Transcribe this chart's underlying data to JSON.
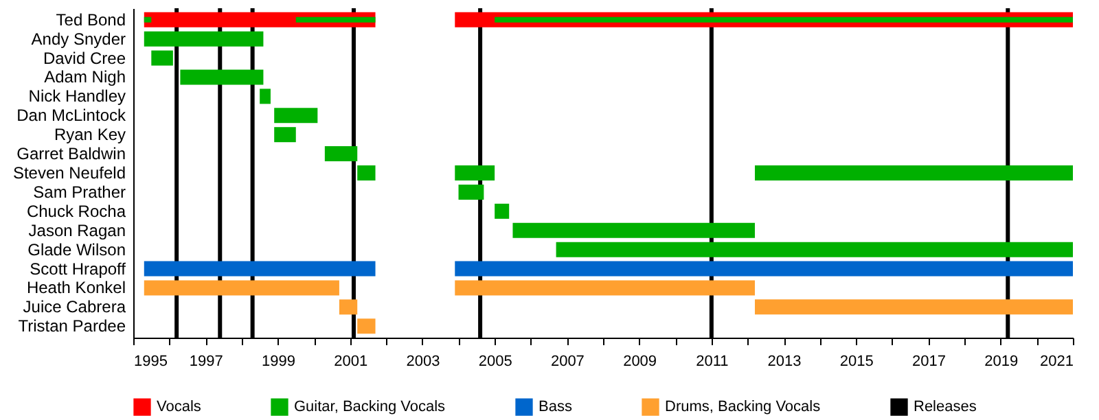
{
  "chart_data": {
    "type": "bar",
    "orientation": "horizontal",
    "categories": [
      "Ted Bond",
      "Andy Snyder",
      "David Cree",
      "Adam Nigh",
      "Nick Handley",
      "Dan McLintock",
      "Ryan Key",
      "Garret Baldwin",
      "Steven Neufeld",
      "Sam Prather",
      "Chuck Rocha",
      "Jason Ragan",
      "Glade Wilson",
      "Scott Hrapoff",
      "Heath Konkel",
      "Juice Cabrera",
      "Tristan Pardee"
    ],
    "series": [
      {
        "name": "Vocals",
        "color": "#ff0000",
        "base": [
          1995.3,
          null,
          null,
          null,
          null,
          null,
          null,
          null,
          null,
          null,
          null,
          null,
          null,
          null,
          null,
          null,
          null
        ],
        "values": [
          6.4,
          null,
          null,
          null,
          null,
          null,
          null,
          null,
          null,
          null,
          null,
          null,
          null,
          null,
          null,
          null,
          null
        ]
      },
      {
        "color": "#ff0000",
        "base": [
          2003.9,
          null,
          null,
          null,
          null,
          null,
          null,
          null,
          null,
          null,
          null,
          null,
          null,
          null,
          null,
          null,
          null
        ],
        "values": [
          17.1,
          null,
          null,
          null,
          null,
          null,
          null,
          null,
          null,
          null,
          null,
          null,
          null,
          null,
          null,
          null,
          null
        ]
      },
      {
        "name": "Guitar, Backing Vocals",
        "color": "#00b000",
        "base": [
          1999.5,
          1995.3,
          1995.5,
          1996.3,
          1998.5,
          1998.9,
          1998.9,
          2000.3,
          2001.2,
          null,
          null,
          null,
          null,
          null,
          null,
          null,
          null
        ],
        "values": [
          2.2,
          3.3,
          0.6,
          2.3,
          0.3,
          1.2,
          0.6,
          0.9,
          0.5,
          null,
          null,
          null,
          null,
          null,
          null,
          null,
          null
        ]
      },
      {
        "color": "#00b000",
        "base": [
          1995.3,
          null,
          null,
          null,
          null,
          null,
          null,
          null,
          2003.9,
          2004.0,
          2005.0,
          2005.5,
          2006.7,
          null,
          null,
          null,
          null
        ],
        "values": [
          0.2,
          null,
          null,
          null,
          null,
          null,
          null,
          null,
          1.1,
          0.7,
          0.4,
          6.7,
          14.3,
          null,
          null,
          null,
          null
        ]
      },
      {
        "color": "#00b000",
        "base": [
          2005.0,
          null,
          null,
          null,
          null,
          null,
          null,
          null,
          2012.2,
          null,
          null,
          null,
          null,
          null,
          null,
          null,
          null
        ],
        "values": [
          16.0,
          null,
          null,
          null,
          null,
          null,
          null,
          null,
          8.8,
          null,
          null,
          null,
          null,
          null,
          null,
          null,
          null
        ]
      },
      {
        "name": "Bass",
        "color": "#0066cc",
        "base": [
          null,
          null,
          null,
          null,
          null,
          null,
          null,
          null,
          null,
          null,
          null,
          null,
          null,
          1995.3,
          null,
          null,
          null
        ],
        "values": [
          null,
          null,
          null,
          null,
          null,
          null,
          null,
          null,
          null,
          null,
          null,
          null,
          null,
          6.4,
          null,
          null,
          null
        ]
      },
      {
        "color": "#0066cc",
        "base": [
          null,
          null,
          null,
          null,
          null,
          null,
          null,
          null,
          null,
          null,
          null,
          null,
          null,
          2003.9,
          null,
          null,
          null
        ],
        "values": [
          null,
          null,
          null,
          null,
          null,
          null,
          null,
          null,
          null,
          null,
          null,
          null,
          null,
          17.1,
          null,
          null,
          null
        ]
      },
      {
        "name": "Drums, Backing Vocals",
        "color": "#ffa030",
        "base": [
          null,
          null,
          null,
          null,
          null,
          null,
          null,
          null,
          null,
          null,
          null,
          null,
          null,
          null,
          1995.3,
          2000.7,
          2001.2
        ],
        "values": [
          null,
          null,
          null,
          null,
          null,
          null,
          null,
          null,
          null,
          null,
          null,
          null,
          null,
          null,
          5.4,
          0.5,
          0.5
        ]
      },
      {
        "color": "#ffa030",
        "base": [
          null,
          null,
          null,
          null,
          null,
          null,
          null,
          null,
          null,
          null,
          null,
          null,
          null,
          null,
          2003.9,
          2012.2,
          null
        ],
        "values": [
          null,
          null,
          null,
          null,
          null,
          null,
          null,
          null,
          null,
          null,
          null,
          null,
          null,
          null,
          8.3,
          8.8,
          null
        ]
      }
    ],
    "ref_lines": [
      {
        "axis": "x",
        "value": 1996.2,
        "label": "Releases",
        "color": "#000000"
      },
      {
        "axis": "x",
        "value": 1997.4,
        "color": "#000000"
      },
      {
        "axis": "x",
        "value": 1998.3,
        "color": "#000000"
      },
      {
        "axis": "x",
        "value": 2001.1,
        "color": "#000000"
      },
      {
        "axis": "x",
        "value": 2004.6,
        "color": "#000000"
      },
      {
        "axis": "x",
        "value": 2011.0,
        "color": "#000000"
      },
      {
        "axis": "x",
        "value": 2019.2,
        "color": "#000000"
      }
    ],
    "xlim": [
      1995,
      2021
    ],
    "xticks": [
      1995,
      {
        "value": 1996,
        "label": null
      },
      1997,
      {
        "value": 1998,
        "label": null
      },
      1999,
      {
        "value": 2000,
        "label": null
      },
      2001,
      {
        "value": 2002,
        "label": null
      },
      2003,
      {
        "value": 2004,
        "label": null
      },
      2005,
      {
        "value": 2006,
        "label": null
      },
      2007,
      {
        "value": 2008,
        "label": null
      },
      2009,
      {
        "value": 2010,
        "label": null
      },
      2011,
      {
        "value": 2012,
        "label": null
      },
      2013,
      {
        "value": 2014,
        "label": null
      },
      2015,
      {
        "value": 2016,
        "label": null
      },
      2017,
      {
        "value": 2018,
        "label": null
      },
      2019,
      {
        "value": 2020,
        "label": null
      },
      2021
    ],
    "grid": false,
    "legend": "bottom"
  }
}
